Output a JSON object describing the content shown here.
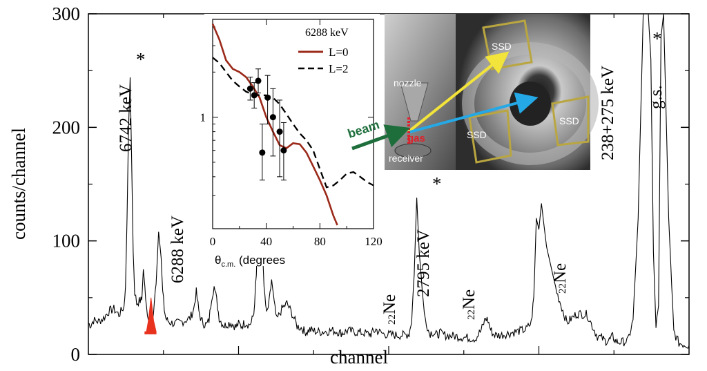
{
  "chart_data": [
    {
      "type": "line",
      "xlabel": "channel",
      "ylabel": "counts/channel",
      "ylim": [
        0,
        300
      ],
      "y_ticks": [
        "0",
        "100",
        "200",
        "300"
      ],
      "grid": false,
      "series": [
        {
          "x": [
            0,
            5,
            10,
            20,
            30,
            40,
            50,
            60,
            70,
            73,
            76,
            79,
            82,
            85,
            88,
            91,
            95,
            100,
            105,
            108,
            111,
            114,
            118,
            123,
            128,
            133,
            138,
            143,
            146,
            149,
            152,
            155,
            158,
            162,
            170,
            180,
            190,
            200,
            207,
            212,
            217,
            222,
            227,
            232,
            237,
            242,
            247,
            252,
            257,
            262,
            267,
            272,
            280,
            285,
            290,
            295,
            300,
            305,
            310,
            315,
            320,
            325,
            330,
            335,
            340,
            345,
            350,
            355,
            360,
            365,
            370,
            380,
            390,
            400,
            410,
            420,
            425,
            430,
            435,
            440,
            450,
            460,
            480,
            490,
            495,
            500,
            505,
            510,
            520,
            540,
            550,
            555,
            560,
            565,
            570,
            580,
            600,
            620,
            630,
            635,
            640,
            645,
            650,
            660,
            670,
            675,
            680,
            685,
            690,
            700,
            720,
            740,
            760,
            770,
            775,
            780,
            785,
            790,
            795,
            800,
            810,
            820,
            840,
            860,
            870,
            875,
            880,
            885,
            890,
            900,
            920,
            940,
            960,
            980,
            990,
            1000,
            1010,
            1015,
            1020,
            1025,
            1030,
            1035,
            1040,
            1050,
            1060,
            1070,
            1080,
            1090,
            1100,
            1105,
            1110,
            1115,
            1120,
            1125,
            1130,
            1140,
            1150,
            1160,
            1170,
            1180
          ],
          "values": [
            27,
            26,
            30,
            29,
            32,
            38,
            40,
            35,
            42,
            60,
            120,
            200,
            244,
            170,
            90,
            55,
            45,
            47,
            48,
            75,
            60,
            42,
            28,
            20,
            40,
            62,
            108,
            85,
            55,
            40,
            32,
            30,
            29,
            28,
            27,
            28,
            30,
            32,
            40,
            55,
            38,
            30,
            27,
            26,
            30,
            50,
            60,
            48,
            32,
            28,
            25,
            27,
            28,
            26,
            24,
            27,
            25,
            27,
            28,
            26,
            28,
            36,
            70,
            150,
            118,
            60,
            35,
            45,
            66,
            45,
            30,
            40,
            45,
            36,
            25,
            23,
            20,
            20,
            22,
            21,
            20,
            20,
            21,
            20,
            19,
            19,
            20,
            21,
            20,
            19,
            18,
            18,
            20,
            22,
            20,
            18,
            17,
            17,
            18,
            30,
            70,
            138,
            90,
            35,
            18,
            20,
            18,
            17,
            19,
            17,
            16,
            15,
            14,
            20,
            25,
            32,
            30,
            22,
            18,
            17,
            17,
            18,
            20,
            22,
            28,
            50,
            120,
            110,
            133,
            95,
            55,
            28,
            36,
            35,
            25,
            16,
            14,
            12,
            12,
            13,
            16,
            12,
            11,
            11,
            12,
            30,
            120,
            300,
            300,
            260,
            90,
            25,
            40,
            280,
            300,
            120,
            20,
            10,
            9,
            8
          ]
        }
      ],
      "annotations": [
        {
          "text": "6742 keV",
          "marker": "*"
        },
        {
          "text": "6288 keV"
        },
        {
          "text": "2795 keV",
          "marker": "*"
        },
        {
          "text": "238+275 keV"
        },
        {
          "text": "g.s.",
          "marker": "*"
        },
        {
          "text_sup": "22",
          "text": "Ne"
        },
        {
          "text_sup": "22",
          "text": "Ne"
        },
        {
          "text_sup": "22",
          "text": "Ne"
        }
      ],
      "highlight": {
        "label": "6288 keV",
        "color": "#e8321e"
      }
    },
    {
      "type": "line",
      "xlabel_main": "θ",
      "xlabel_sub": "c.m.",
      "xlabel_rest": " (degrees",
      "xlim": [
        0,
        120
      ],
      "x_ticks": [
        "0",
        "40",
        "80",
        "120"
      ],
      "y_scale": "log",
      "y_ticks": [
        "1"
      ],
      "legend": {
        "title": "6288 keV",
        "placement": "top-right"
      },
      "series": [
        {
          "name": "L=0",
          "color": "#9b2a1a",
          "style": "solid",
          "x": [
            0,
            5,
            10,
            15,
            20,
            25,
            30,
            35,
            40,
            45,
            50,
            55,
            60,
            65,
            70,
            75,
            80,
            85,
            90,
            93
          ],
          "values": [
            4.2,
            3.3,
            2.4,
            2.1,
            2.0,
            1.85,
            1.6,
            1.35,
            1.0,
            0.8,
            0.65,
            0.62,
            0.67,
            0.66,
            0.58,
            0.47,
            0.38,
            0.3,
            0.22,
            0.19
          ]
        },
        {
          "name": "L=2",
          "color": "#000000",
          "style": "dashed",
          "x": [
            0,
            5,
            10,
            15,
            20,
            25,
            30,
            35,
            40,
            45,
            50,
            55,
            60,
            65,
            70,
            75,
            80,
            85,
            90,
            95,
            100,
            105,
            110,
            115,
            120
          ],
          "values": [
            2.5,
            2.3,
            2.0,
            1.75,
            1.6,
            1.48,
            1.42,
            1.4,
            1.4,
            1.35,
            1.22,
            1.05,
            0.9,
            0.78,
            0.7,
            0.6,
            0.45,
            0.34,
            0.35,
            0.38,
            0.42,
            0.43,
            0.4,
            0.37,
            0.35
          ]
        },
        {
          "name": "data",
          "type": "scatter",
          "color": "#000000",
          "x": [
            28,
            31,
            34,
            37,
            41,
            45,
            50,
            53
          ],
          "values": [
            1.55,
            1.4,
            1.75,
            0.58,
            1.35,
            1.0,
            0.8,
            0.6
          ],
          "error_low": [
            0.25,
            0.25,
            0.3,
            0.2,
            0.45,
            0.45,
            0.4,
            0.22
          ],
          "error_high": [
            0.3,
            0.3,
            0.35,
            0.32,
            0.55,
            0.55,
            0.5,
            0.32
          ]
        }
      ]
    }
  ],
  "photo": {
    "labels": {
      "ssd_top": "SSD",
      "nozzle": "nozzle",
      "beam": "beam",
      "gas": "gas",
      "ssd_mid": "SSD",
      "ssd_right": "SSD",
      "receiver": "receiver"
    },
    "colors": {
      "beam_arrow": "#1e6e3c",
      "yellow_arrow": "#f2e43a",
      "blue_arrow": "#25a9e6",
      "gas": "#e0202a"
    }
  }
}
